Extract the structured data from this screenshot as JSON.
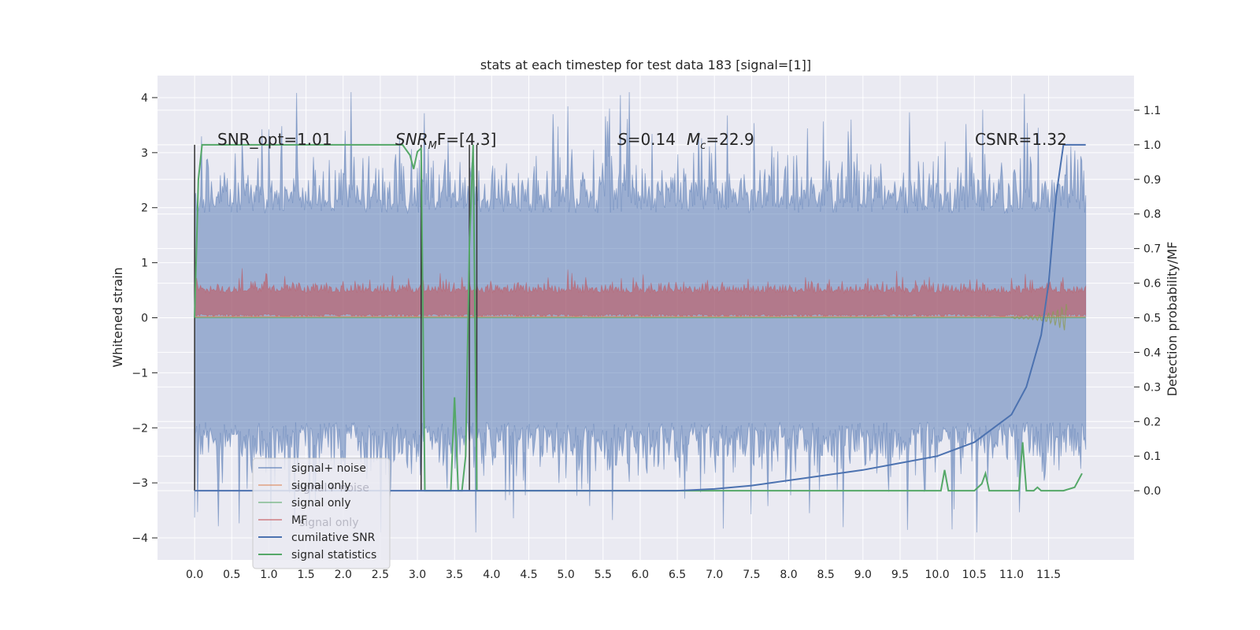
{
  "chart_data": {
    "type": "line",
    "title": "stats at each timestep for test data 183 [signal=[1]]",
    "xlabel": "",
    "ylabel": "Whitened strain",
    "y2label": "Detection probability/MF",
    "xlim": [
      -0.5,
      12.65
    ],
    "ylim": [
      -4.4,
      4.4
    ],
    "y2lim": [
      -0.2,
      1.2
    ],
    "xticks": [
      "0.0",
      "0.5",
      "1.0",
      "1.5",
      "2.0",
      "2.5",
      "3.0",
      "3.5",
      "4.0",
      "4.5",
      "5.0",
      "5.5",
      "6.0",
      "6.5",
      "7.0",
      "7.5",
      "8.0",
      "8.5",
      "9.0",
      "9.5",
      "10.0",
      "10.5",
      "11.0",
      "11.5"
    ],
    "yticks": [
      "4",
      "3",
      "2",
      "1",
      "0",
      "−1",
      "−2",
      "−3",
      "−4"
    ],
    "y2ticks": [
      "1.1",
      "1.0",
      "0.9",
      "0.8",
      "0.7",
      "0.6",
      "0.5",
      "0.4",
      "0.3",
      "0.2",
      "0.1",
      "0.0"
    ],
    "grid": true,
    "legend_position": "lower-left",
    "legend": [
      {
        "label": "signal+ noise",
        "color": "#4c72b0"
      },
      {
        "label": "signal only",
        "color": "#dd8452"
      },
      {
        "label": "signal only",
        "color": "#55a868"
      },
      {
        "label": "MF",
        "color": "#c44e52"
      },
      {
        "label": "cumilative SNR",
        "color": "#4c72b0"
      },
      {
        "label": "signal statistics",
        "color": "#55a868"
      }
    ],
    "legend_hidden_text": [
      "signal+ noise",
      "signal only"
    ],
    "annotations": {
      "snr_opt": "SNR_opt=1.01",
      "snr_mf_base": "SNR",
      "snr_mf_sub": "M",
      "snr_mf_rest": "F=[4.3]",
      "s_label": "S",
      "s_value": "=0.14",
      "mc_base": "M",
      "mc_sub": "c",
      "mc_value": "=22.9",
      "csnr": "CSNR=1.32"
    },
    "series": [
      {
        "name": "signal+ noise",
        "axis": "left",
        "color": "#4c72b0",
        "description_range": [
          -3.9,
          4.1
        ],
        "x_range": [
          0.0,
          12.0
        ]
      },
      {
        "name": "MF",
        "axis": "left",
        "color": "#c44e52",
        "description_range": [
          0.0,
          0.9
        ],
        "x_range": [
          0.0,
          12.0
        ]
      },
      {
        "name": "cumilative SNR",
        "axis": "right",
        "color": "#4c72b0",
        "x": [
          0.0,
          6.5,
          7.0,
          7.5,
          8.0,
          8.5,
          9.0,
          9.5,
          10.0,
          10.5,
          11.0,
          11.2,
          11.4,
          11.5,
          11.6,
          11.7,
          11.75,
          12.0
        ],
        "y": [
          0.0,
          0.0,
          0.005,
          0.015,
          0.03,
          0.045,
          0.06,
          0.08,
          0.1,
          0.14,
          0.22,
          0.3,
          0.45,
          0.6,
          0.85,
          1.0,
          1.0,
          1.0
        ]
      },
      {
        "name": "signal statistics",
        "axis": "right",
        "color": "#55a868",
        "x": [
          0.0,
          0.05,
          0.1,
          0.5,
          1.0,
          2.0,
          2.5,
          2.8,
          2.9,
          2.95,
          3.0,
          3.05,
          3.1,
          3.15,
          3.2,
          3.3,
          3.35,
          3.45,
          3.5,
          3.55,
          3.6,
          3.65,
          3.7,
          3.75,
          3.8,
          3.85,
          3.9,
          4.0,
          6.0,
          8.0,
          10.0,
          10.05,
          10.1,
          10.15,
          10.2,
          10.5,
          10.6,
          10.65,
          10.7,
          10.8,
          11.0,
          11.1,
          11.15,
          11.2,
          11.25,
          11.3,
          11.35,
          11.4,
          11.5,
          11.7,
          11.85,
          11.95
        ],
        "y": [
          0.5,
          0.9,
          1.0,
          1.0,
          1.0,
          1.0,
          1.0,
          1.0,
          0.97,
          0.93,
          0.98,
          0.99,
          0.0,
          0.0,
          0.0,
          0.0,
          0.0,
          0.0,
          0.27,
          0.0,
          0.0,
          0.1,
          0.7,
          1.0,
          0.0,
          0.0,
          0.0,
          0.0,
          0.0,
          0.0,
          0.0,
          0.0,
          0.06,
          0.0,
          0.0,
          0.0,
          0.02,
          0.05,
          0.0,
          0.0,
          0.0,
          0.0,
          0.14,
          0.0,
          0.0,
          0.0,
          0.01,
          0.0,
          0.0,
          0.0,
          0.01,
          0.05
        ]
      },
      {
        "name": "vertical markers",
        "axis": "right",
        "color": "#333333",
        "x": [
          0.0,
          3.05,
          3.7,
          3.8
        ]
      }
    ]
  }
}
